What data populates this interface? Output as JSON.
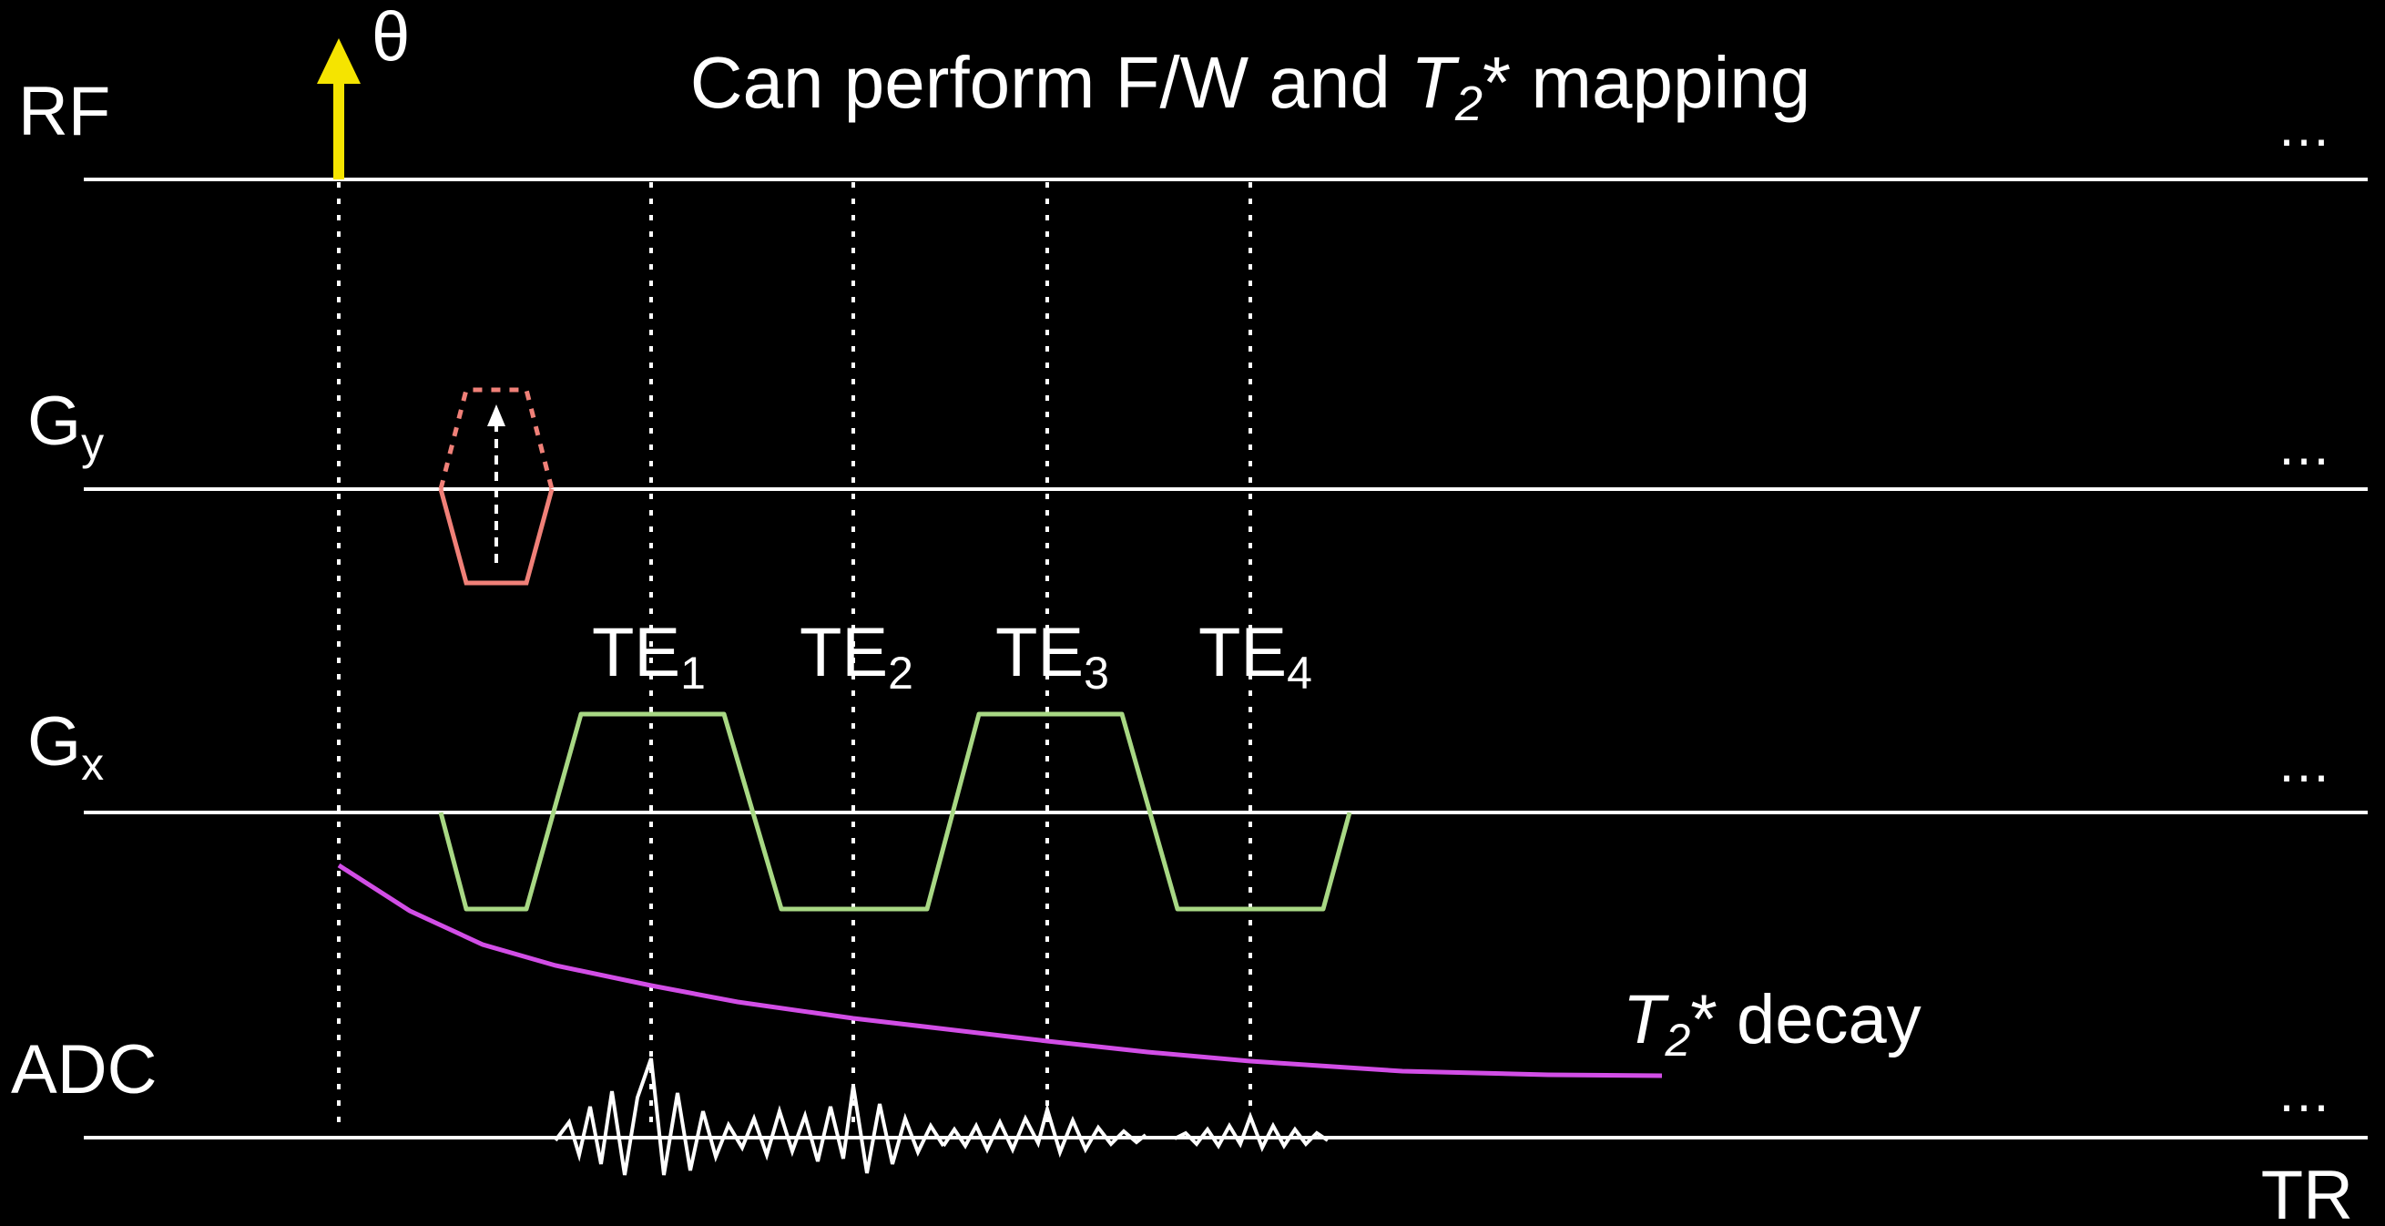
{
  "title": {
    "prefix": "Can perform F/W and ",
    "t_symbol": "T",
    "t_sub": "2",
    "suffix": "* mapping"
  },
  "rows": {
    "rf": {
      "label": "RF",
      "ellipsis": "…"
    },
    "gy": {
      "label": "G",
      "sub": "y",
      "ellipsis": "…"
    },
    "gx": {
      "label": "G",
      "sub": "x",
      "ellipsis": "…"
    },
    "adc": {
      "label": "ADC",
      "ellipsis": "…"
    }
  },
  "flip_angle_label": "θ",
  "echo_times": [
    {
      "label": "TE",
      "sub": "1"
    },
    {
      "label": "TE",
      "sub": "2"
    },
    {
      "label": "TE",
      "sub": "3"
    },
    {
      "label": "TE",
      "sub": "4"
    }
  ],
  "decay_label": {
    "t_symbol": "T",
    "t_sub": "2",
    "suffix": "* decay"
  },
  "tr_label": "TR",
  "colors": {
    "background": "#000000",
    "axis": "#ffffff",
    "rf_pulse": "#f5e400",
    "phase_gradient": "#f08078",
    "readout_gradient": "#a8d884",
    "decay_curve": "#d24ee6",
    "signal": "#ffffff"
  }
}
